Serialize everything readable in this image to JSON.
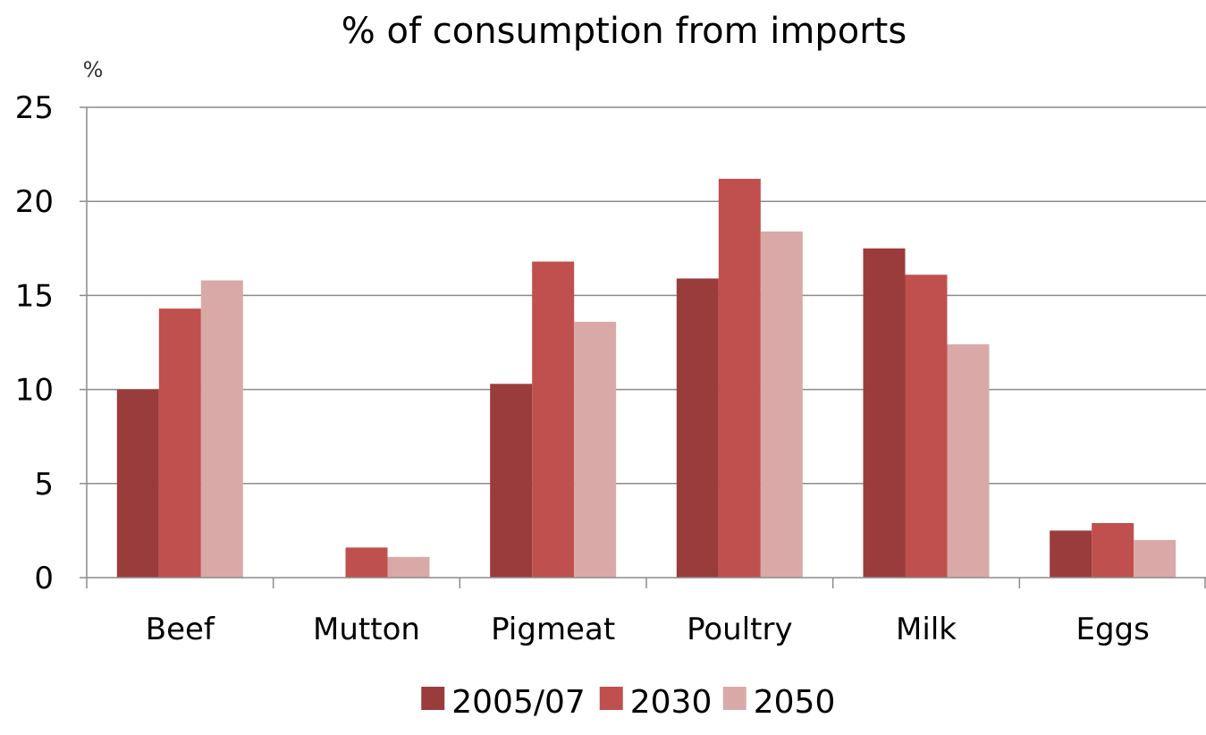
{
  "chart_data": {
    "type": "bar",
    "title": "% of consumption  from imports",
    "ylabel": "%",
    "xlabel": "",
    "categories": [
      "Beef",
      "Mutton",
      "Pigmeat",
      "Poultry",
      "Milk",
      "Eggs"
    ],
    "series": [
      {
        "name": "2005/07",
        "color": "#9b3c3c",
        "values": [
          10.0,
          0.0,
          10.3,
          15.9,
          17.5,
          2.5
        ]
      },
      {
        "name": "2030",
        "color": "#c0504d",
        "values": [
          14.3,
          1.6,
          16.8,
          21.2,
          16.1,
          2.9
        ]
      },
      {
        "name": "2050",
        "color": "#d9a9a8",
        "values": [
          15.8,
          1.1,
          13.6,
          18.4,
          12.4,
          2.0
        ]
      }
    ],
    "ylim": [
      0,
      25
    ],
    "yticks": [
      0,
      5,
      10,
      15,
      20,
      25
    ],
    "grid": true,
    "legend_position": "bottom"
  }
}
